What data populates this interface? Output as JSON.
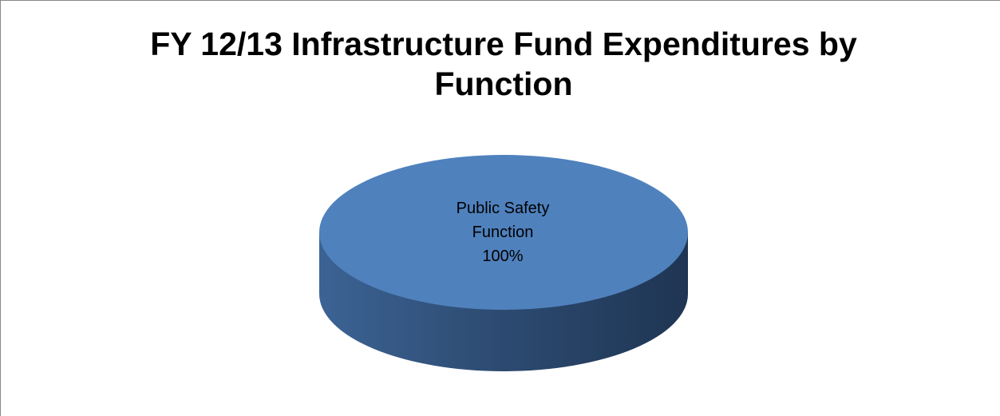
{
  "chart_data": {
    "type": "pie",
    "title": "FY 12/13 Infrastructure Fund Expenditures by Function",
    "categories": [
      "Public Safety Function"
    ],
    "values": [
      100
    ],
    "value_labels": [
      "100%"
    ],
    "colors": [
      "#4f81bd"
    ]
  }
}
